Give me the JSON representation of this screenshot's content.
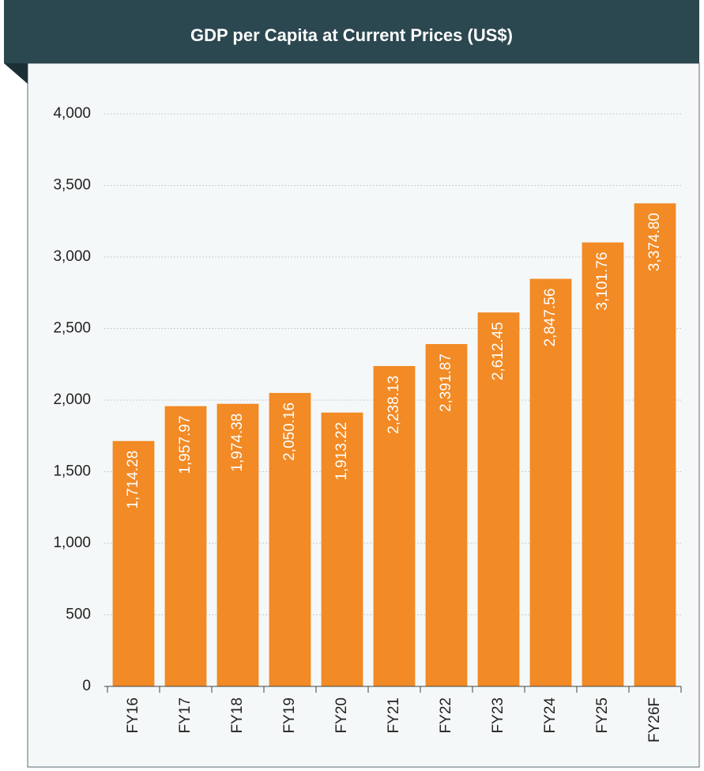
{
  "chart_data": {
    "type": "bar",
    "title": "GDP per Capita at Current Prices (US$)",
    "categories": [
      "FY16",
      "FY17",
      "FY18",
      "FY19",
      "FY20",
      "FY21",
      "FY22",
      "FY23",
      "FY24",
      "FY25",
      "FY26F"
    ],
    "values": [
      1714.28,
      1957.97,
      1974.38,
      2050.16,
      1913.22,
      2238.13,
      2391.87,
      2612.45,
      2847.56,
      3101.76,
      3374.8
    ],
    "value_labels": [
      "1,714.28",
      "1,957.97",
      "1,974.38",
      "2,050.16",
      "1,913.22",
      "2,238.13",
      "2,391.87",
      "2,612.45",
      "2,847.56",
      "3,101.76",
      "3,374.80"
    ],
    "color": "#f28a25",
    "ylim": [
      0,
      4000
    ],
    "yticks": [
      0,
      500,
      {
        "value": 1000,
        "label": "1,000"
      },
      {
        "value": 1500,
        "label": "1,500"
      },
      {
        "value": 2000,
        "label": "2,000"
      },
      {
        "value": 2500,
        "label": "2,500"
      },
      {
        "value": 3000,
        "label": "3,000"
      },
      {
        "value": 3500,
        "label": "3,500"
      },
      {
        "value": 4000,
        "label": "4,000"
      }
    ],
    "grid": true
  }
}
